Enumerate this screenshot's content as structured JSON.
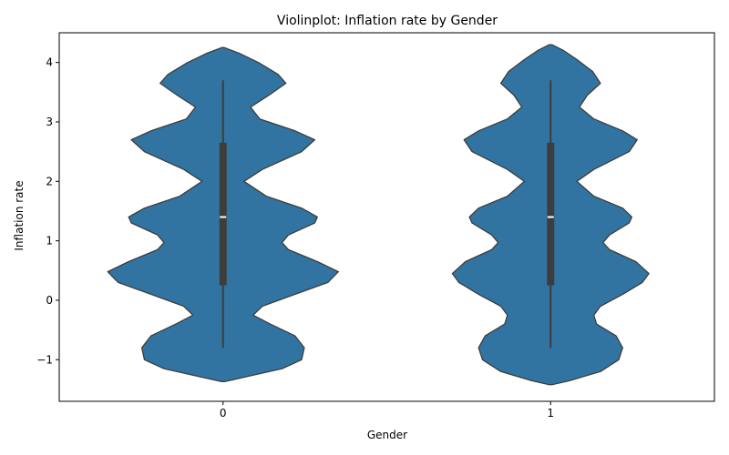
{
  "chart_data": {
    "type": "violin",
    "title": "Violinplot: Inflation rate by Gender",
    "xlabel": "Gender",
    "ylabel": "Inflation rate",
    "categories": [
      "0",
      "1"
    ],
    "ylim": [
      -1.7,
      4.5
    ],
    "yticks": [
      -1,
      0,
      1,
      2,
      3,
      4
    ],
    "ytick_labels": [
      "−1",
      "0",
      "1",
      "2",
      "3",
      "4"
    ],
    "grid": false,
    "legend": "none",
    "color": "#3274a1",
    "edge_color": "#3d3d3d",
    "series": [
      {
        "category": "0",
        "box": {
          "whisker_low": -0.8,
          "q1": 0.25,
          "median": 1.4,
          "q3": 2.65,
          "whisker_high": 3.7
        },
        "density": [
          [
            -1.37,
            0.01
          ],
          [
            -1.3,
            0.15
          ],
          [
            -1.15,
            0.45
          ],
          [
            -1.0,
            0.6
          ],
          [
            -0.8,
            0.62
          ],
          [
            -0.6,
            0.55
          ],
          [
            -0.4,
            0.36
          ],
          [
            -0.25,
            0.23
          ],
          [
            -0.1,
            0.3
          ],
          [
            0.1,
            0.55
          ],
          [
            0.3,
            0.8
          ],
          [
            0.48,
            0.88
          ],
          [
            0.65,
            0.72
          ],
          [
            0.85,
            0.5
          ],
          [
            0.97,
            0.45
          ],
          [
            1.1,
            0.5
          ],
          [
            1.3,
            0.7
          ],
          [
            1.4,
            0.72
          ],
          [
            1.55,
            0.6
          ],
          [
            1.75,
            0.33
          ],
          [
            2.0,
            0.16
          ],
          [
            2.2,
            0.3
          ],
          [
            2.5,
            0.6
          ],
          [
            2.7,
            0.7
          ],
          [
            2.85,
            0.55
          ],
          [
            3.05,
            0.28
          ],
          [
            3.25,
            0.21
          ],
          [
            3.45,
            0.35
          ],
          [
            3.65,
            0.48
          ],
          [
            3.8,
            0.42
          ],
          [
            4.0,
            0.27
          ],
          [
            4.15,
            0.13
          ],
          [
            4.25,
            0.01
          ]
        ]
      },
      {
        "category": "1",
        "box": {
          "whisker_low": -0.8,
          "q1": 0.25,
          "median": 1.4,
          "q3": 2.65,
          "whisker_high": 3.7
        },
        "density": [
          [
            -1.42,
            0.01
          ],
          [
            -1.35,
            0.15
          ],
          [
            -1.2,
            0.38
          ],
          [
            -1.0,
            0.52
          ],
          [
            -0.8,
            0.55
          ],
          [
            -0.6,
            0.5
          ],
          [
            -0.4,
            0.35
          ],
          [
            -0.25,
            0.33
          ],
          [
            -0.1,
            0.38
          ],
          [
            0.1,
            0.55
          ],
          [
            0.3,
            0.7
          ],
          [
            0.45,
            0.75
          ],
          [
            0.65,
            0.65
          ],
          [
            0.85,
            0.45
          ],
          [
            0.97,
            0.4
          ],
          [
            1.1,
            0.45
          ],
          [
            1.3,
            0.6
          ],
          [
            1.4,
            0.62
          ],
          [
            1.55,
            0.55
          ],
          [
            1.75,
            0.33
          ],
          [
            2.0,
            0.2
          ],
          [
            2.2,
            0.33
          ],
          [
            2.5,
            0.6
          ],
          [
            2.7,
            0.66
          ],
          [
            2.85,
            0.55
          ],
          [
            3.05,
            0.33
          ],
          [
            3.25,
            0.22
          ],
          [
            3.45,
            0.28
          ],
          [
            3.65,
            0.38
          ],
          [
            3.85,
            0.32
          ],
          [
            4.05,
            0.2
          ],
          [
            4.2,
            0.1
          ],
          [
            4.3,
            0.01
          ]
        ]
      }
    ]
  }
}
